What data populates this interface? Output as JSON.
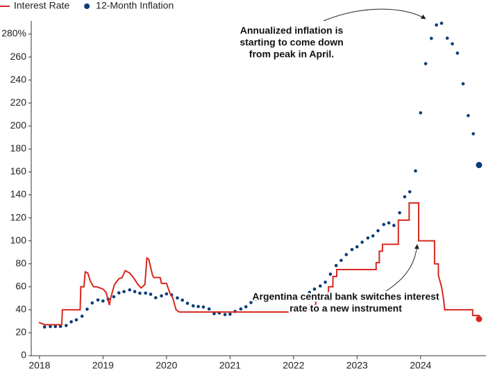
{
  "chart_data": {
    "type": "line",
    "legend": "top-left",
    "xlim": [
      2017.87,
      2025.03
    ],
    "xticks": [
      2018,
      2019,
      2020,
      2021,
      2022,
      2023,
      2024
    ],
    "ylim": [
      0,
      290
    ],
    "yticks": [
      0,
      20,
      40,
      60,
      80,
      100,
      120,
      140,
      160,
      180,
      200,
      220,
      240,
      {
        "value": 280,
        "label": "280%"
      },
      260
    ],
    "series": [
      {
        "name": "Interest Rate",
        "type": "line",
        "color": "#d9261c",
        "x": [
          2017.99,
          2018.08,
          2018.1,
          2018.35,
          2018.36,
          2018.64,
          2018.65,
          2018.7,
          2018.72,
          2018.76,
          2018.8,
          2018.85,
          2018.9,
          2019.0,
          2019.05,
          2019.1,
          2019.12,
          2019.18,
          2019.25,
          2019.3,
          2019.35,
          2019.42,
          2019.48,
          2019.55,
          2019.6,
          2019.66,
          2019.69,
          2019.72,
          2019.78,
          2019.8,
          2019.9,
          2019.92,
          2020.0,
          2020.05,
          2020.1,
          2020.15,
          2020.2,
          2022.15,
          2022.15,
          2022.25,
          2022.25,
          2022.35,
          2022.35,
          2022.45,
          2022.45,
          2022.55,
          2022.55,
          2022.62,
          2022.62,
          2022.68,
          2022.68,
          2023.3,
          2023.3,
          2023.35,
          2023.35,
          2023.4,
          2023.4,
          2023.65,
          2023.65,
          2023.82,
          2023.82,
          2023.97,
          2023.97,
          2024.22,
          2024.22,
          2024.28,
          2024.28,
          2024.33,
          2024.36,
          2024.38,
          2024.82,
          2024.82,
          2024.92,
          2024.92
        ],
        "values": [
          29,
          27,
          27,
          27,
          40,
          40,
          60,
          60,
          73,
          72,
          65,
          60,
          60,
          58,
          55,
          44,
          50,
          62,
          67,
          68,
          74,
          72,
          68,
          62,
          59,
          62,
          85,
          84,
          70,
          68,
          68,
          63,
          63,
          55,
          50,
          40,
          38,
          38,
          40,
          40,
          44,
          44,
          49,
          49,
          52,
          52,
          60,
          60,
          69,
          69,
          75,
          75,
          81,
          81,
          91,
          91,
          97,
          97,
          118,
          118,
          133,
          133,
          100,
          100,
          80,
          80,
          70,
          60,
          50,
          40,
          40,
          35,
          35,
          32
        ]
      },
      {
        "name": "12-Month Inflation",
        "type": "dots",
        "color": "#0b3c78",
        "x": [
          2018.08,
          2018.17,
          2018.25,
          2018.33,
          2018.42,
          2018.5,
          2018.58,
          2018.67,
          2018.75,
          2018.83,
          2018.92,
          2019.0,
          2019.08,
          2019.17,
          2019.25,
          2019.33,
          2019.42,
          2019.5,
          2019.58,
          2019.67,
          2019.75,
          2019.83,
          2019.92,
          2020.0,
          2020.08,
          2020.17,
          2020.25,
          2020.33,
          2020.42,
          2020.5,
          2020.58,
          2020.67,
          2020.75,
          2020.83,
          2020.92,
          2021.0,
          2021.08,
          2021.17,
          2021.25,
          2021.33,
          2021.42,
          2021.5,
          2021.58,
          2021.67,
          2021.75,
          2021.83,
          2021.92,
          2022.0,
          2022.08,
          2022.17,
          2022.25,
          2022.33,
          2022.42,
          2022.5,
          2022.58,
          2022.67,
          2022.75,
          2022.83,
          2022.92,
          2023.0,
          2023.08,
          2023.17,
          2023.25,
          2023.33,
          2023.42,
          2023.5,
          2023.58,
          2023.67,
          2023.75,
          2023.83,
          2023.92,
          2024.0,
          2024.08,
          2024.17,
          2024.25,
          2024.33,
          2024.42,
          2024.5,
          2024.58,
          2024.67,
          2024.75,
          2024.83,
          2024.92
        ],
        "values": [
          25,
          25.4,
          25.4,
          25.5,
          26.3,
          29.5,
          31.2,
          34.4,
          40.5,
          45.9,
          48.5,
          47.6,
          49.3,
          51.3,
          54.7,
          55.8,
          57.3,
          55.8,
          54.4,
          54.5,
          53.5,
          50.5,
          52.1,
          53.8,
          52.9,
          50.3,
          48.4,
          45.6,
          43.4,
          42.8,
          42.4,
          40.7,
          36.6,
          37.2,
          35.8,
          36.1,
          38.5,
          40.7,
          42.6,
          46.3,
          48.8,
          50.2,
          51.8,
          51.4,
          52.5,
          52.1,
          51.2,
          50.9,
          50.7,
          52.3,
          55.1,
          58.0,
          60.7,
          64.0,
          71.0,
          78.5,
          83.0,
          88.0,
          92.4,
          94.8,
          98.8,
          102.5,
          104.3,
          108.8,
          114.2,
          115.6,
          113.4,
          124.4,
          138.3,
          142.7,
          160.9,
          211.4,
          254.2,
          276.2,
          287.9,
          289.4,
          276.4,
          271.5,
          263.4,
          236.7,
          209.0,
          193.2,
          166.0
        ]
      }
    ],
    "annotations": [
      {
        "lines": [
          "Annualized inflation is",
          "starting to come down",
          "from peak in April."
        ]
      },
      {
        "lines": [
          "Argentina central bank switches interest",
          "rate to a new instrument"
        ]
      }
    ]
  }
}
